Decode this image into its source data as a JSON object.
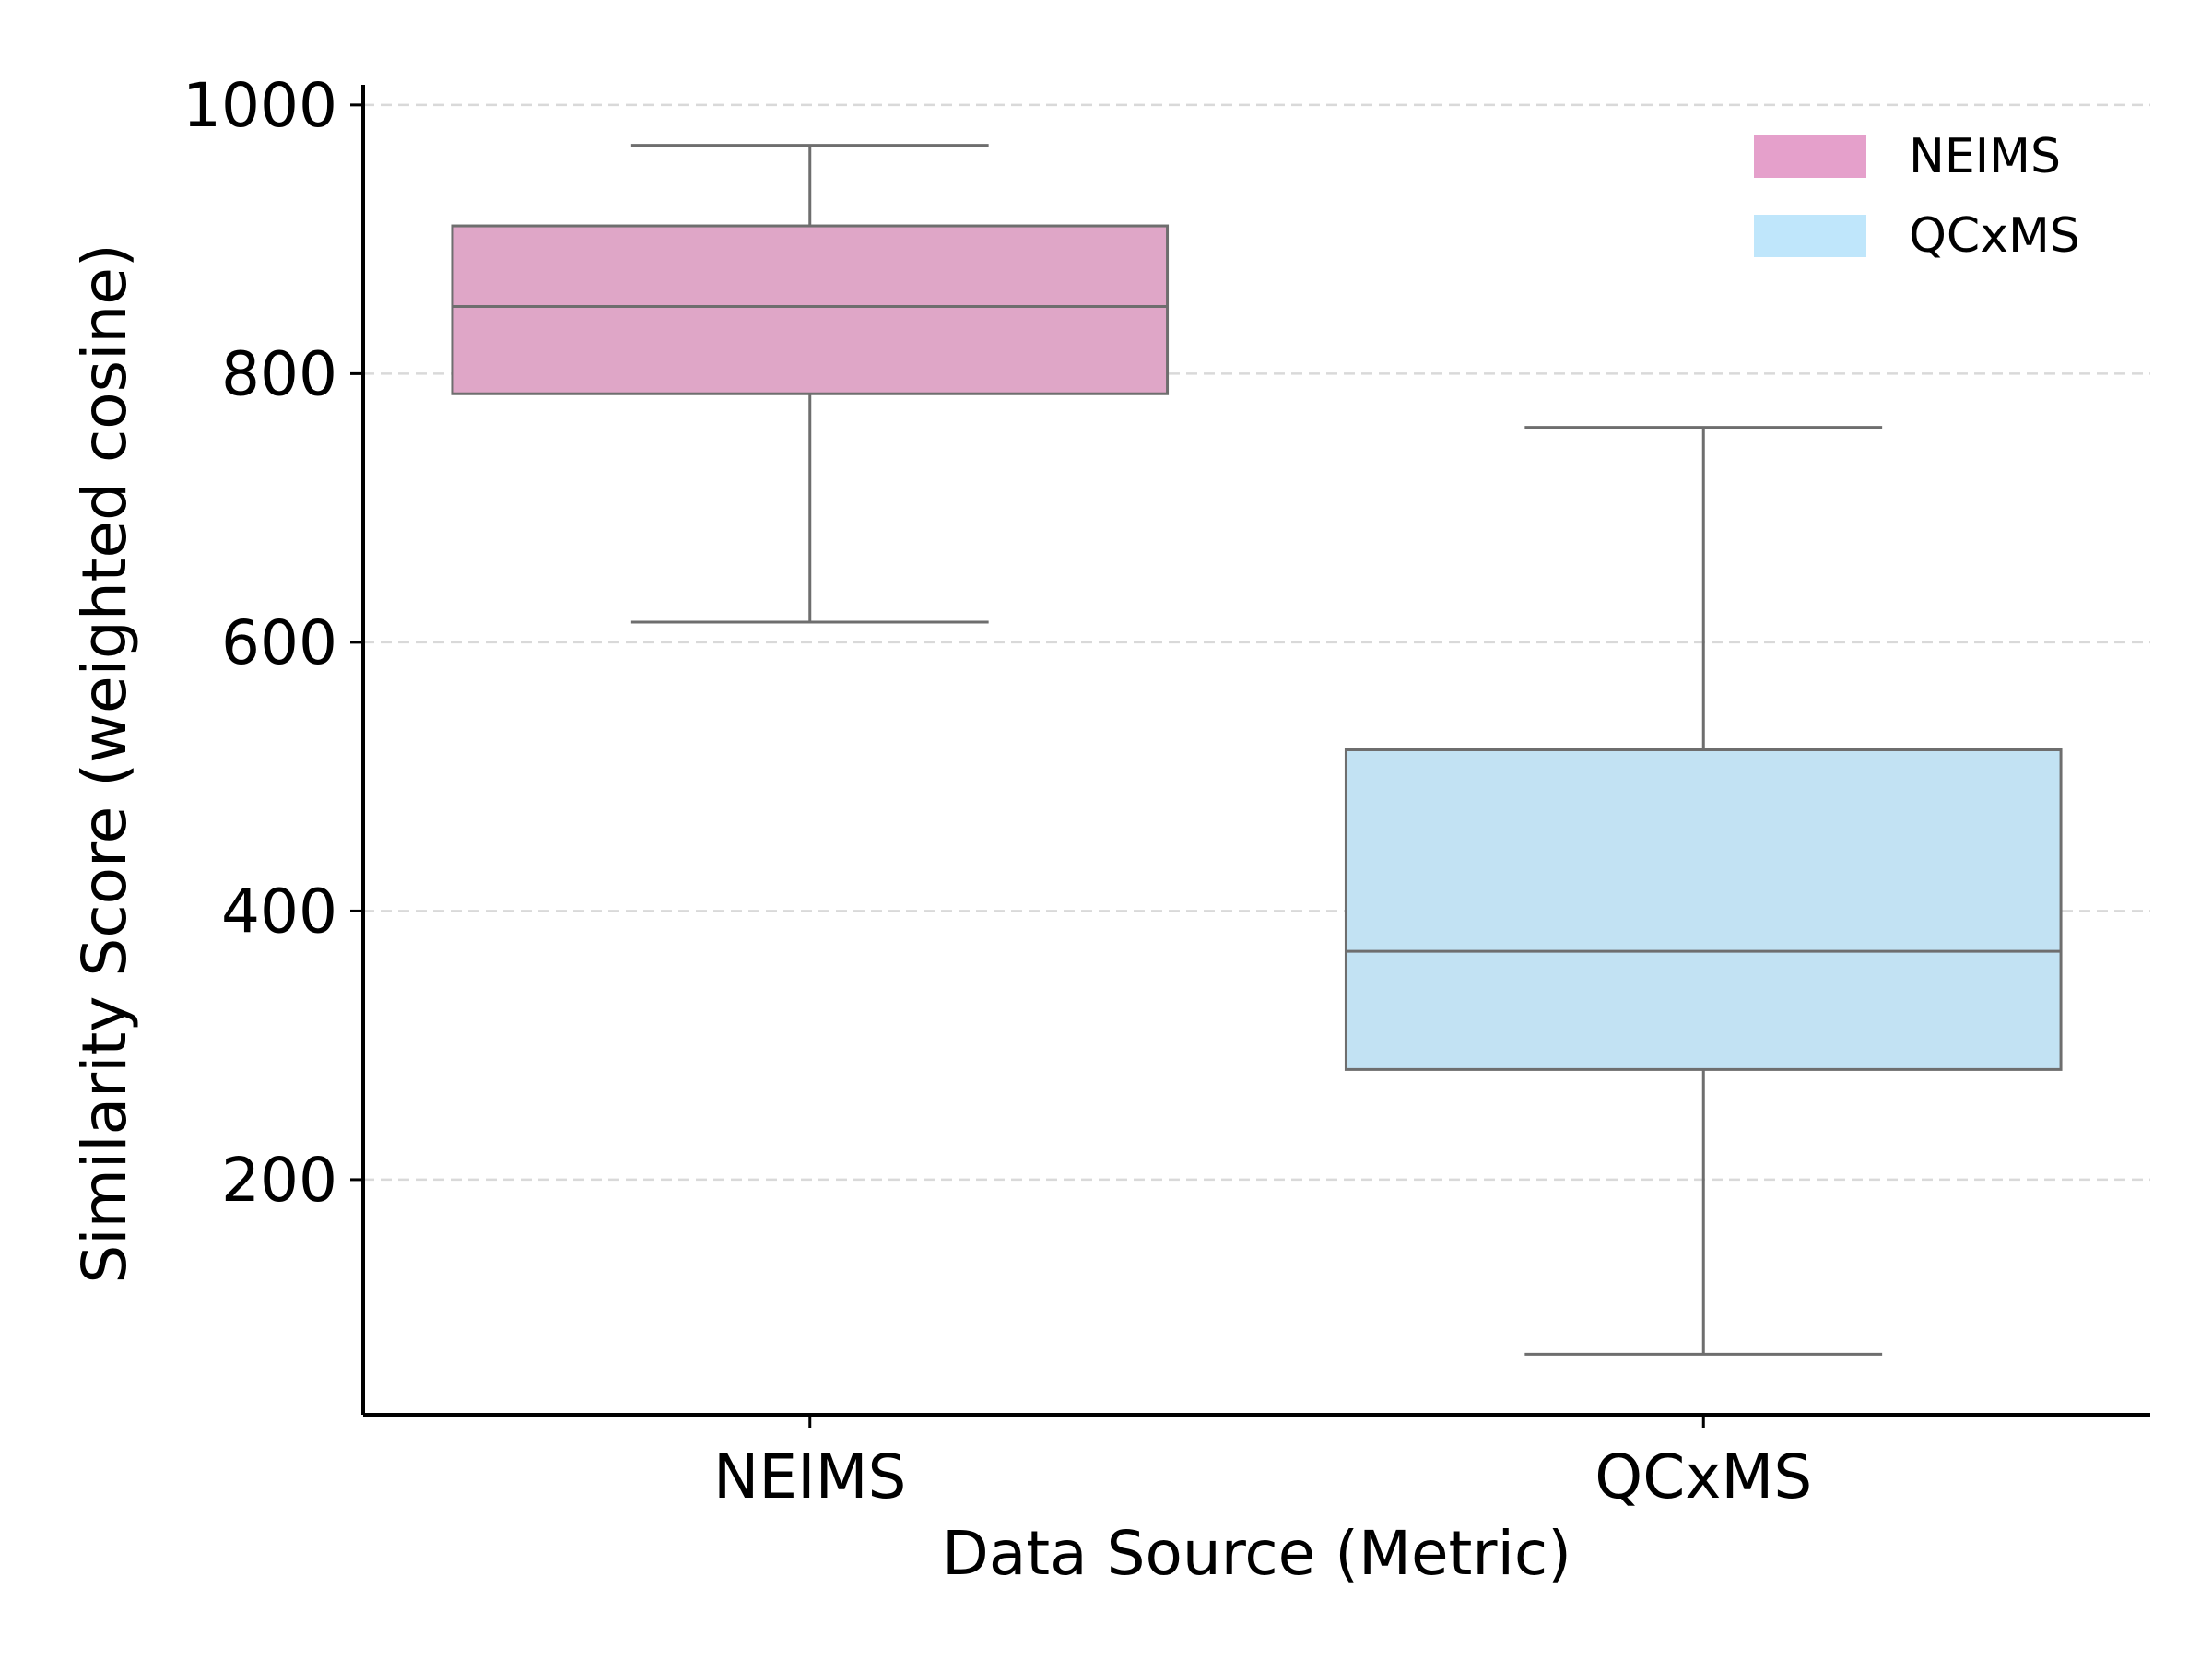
{
  "chart_data": {
    "type": "box",
    "xlabel": "Data Source (Metric)",
    "ylabel": "Similarity Score (weighted cosine)",
    "categories": [
      "NEIMS",
      "QCxMS"
    ],
    "ylim": [
      25,
      1015
    ],
    "yticks": [
      200,
      400,
      600,
      800,
      1000
    ],
    "grid": "y-dashed",
    "legend": {
      "placement": "top-right",
      "entries": [
        {
          "label": "NEIMS",
          "color": "#E5A0CB"
        },
        {
          "label": "QCxMS",
          "color": "#BFE6FB"
        }
      ]
    },
    "boxes": [
      {
        "name": "NEIMS",
        "min": 615,
        "q1": 785,
        "median": 850,
        "q3": 910,
        "max": 970,
        "color": "#DFA6C7"
      },
      {
        "name": "QCxMS",
        "min": 70,
        "q1": 282,
        "median": 370,
        "q3": 520,
        "max": 760,
        "color": "#C2E2F3"
      }
    ],
    "colors": {
      "box_edge": "#6e6e6e",
      "grid": "#d9d9d9",
      "axis": "#000000"
    }
  }
}
